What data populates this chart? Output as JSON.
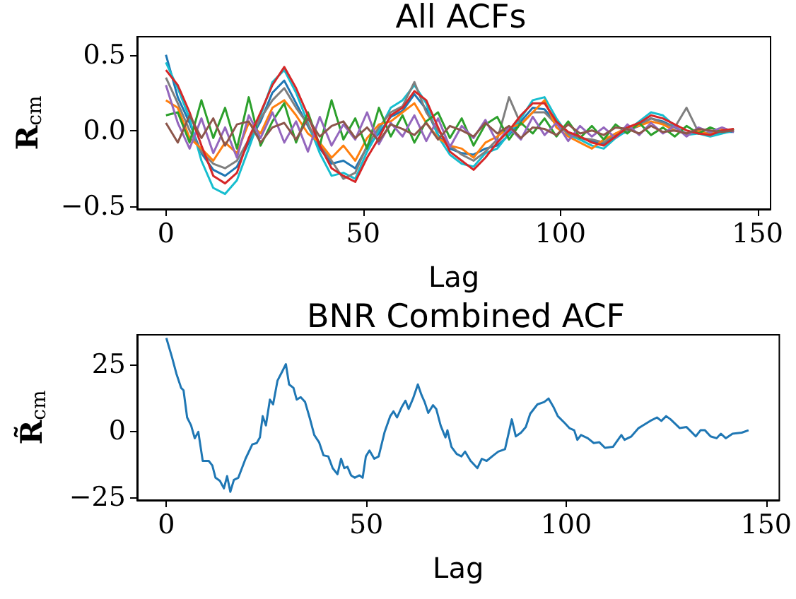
{
  "chart_data": [
    {
      "type": "line",
      "title": "All ACFs",
      "xlabel": "Lag",
      "ylabel": "R$_{cm}$",
      "x": [
        0,
        3,
        6,
        9,
        12,
        15,
        18,
        21,
        24,
        27,
        30,
        33,
        36,
        39,
        42,
        45,
        48,
        51,
        54,
        57,
        60,
        63,
        66,
        69,
        72,
        75,
        78,
        81,
        84,
        87,
        90,
        93,
        96,
        99,
        102,
        105,
        108,
        111,
        114,
        117,
        120,
        123,
        126,
        129,
        132,
        135,
        138,
        141,
        144
      ],
      "series": [
        {
          "color": "#1f77b4",
          "values": [
            0.5,
            0.22,
            0.05,
            -0.15,
            -0.26,
            -0.3,
            -0.24,
            -0.08,
            0.06,
            0.25,
            0.33,
            0.18,
            0.03,
            -0.12,
            -0.22,
            -0.2,
            -0.25,
            -0.11,
            -0.02,
            0.09,
            0.13,
            0.24,
            0.14,
            -0.03,
            -0.12,
            -0.15,
            -0.16,
            -0.12,
            -0.1,
            -0.03,
            0.06,
            0.15,
            0.14,
            0.05,
            -0.02,
            -0.05,
            -0.07,
            -0.09,
            -0.03,
            -0.01,
            0.04,
            0.08,
            0.06,
            0.02,
            -0.02,
            -0.01,
            -0.03,
            -0.01,
            -0.01
          ]
        },
        {
          "color": "#17becf",
          "values": [
            0.45,
            0.28,
            0.08,
            -0.2,
            -0.38,
            -0.42,
            -0.33,
            -0.12,
            0.1,
            0.32,
            0.4,
            0.25,
            0.05,
            -0.15,
            -0.3,
            -0.28,
            -0.32,
            -0.14,
            0.0,
            0.15,
            0.2,
            0.3,
            0.18,
            -0.04,
            -0.16,
            -0.22,
            -0.24,
            -0.15,
            -0.12,
            -0.02,
            0.08,
            0.2,
            0.22,
            0.08,
            -0.03,
            -0.06,
            -0.1,
            -0.12,
            -0.05,
            0.0,
            0.06,
            0.12,
            0.1,
            0.03,
            -0.03,
            -0.02,
            -0.04,
            -0.02,
            0.0
          ]
        },
        {
          "color": "#7f7f7f",
          "values": [
            0.35,
            0.18,
            0.0,
            -0.14,
            -0.22,
            -0.25,
            -0.2,
            -0.06,
            0.08,
            0.2,
            0.28,
            0.15,
            0.04,
            -0.1,
            -0.2,
            -0.32,
            -0.28,
            -0.1,
            0.02,
            0.12,
            0.16,
            0.32,
            0.12,
            0.0,
            -0.1,
            -0.16,
            -0.2,
            -0.14,
            -0.06,
            0.22,
            0.04,
            0.12,
            0.12,
            0.04,
            -0.02,
            -0.05,
            -0.06,
            -0.08,
            -0.02,
            0.0,
            0.03,
            0.08,
            0.05,
            0.02,
            0.15,
            -0.01,
            -0.02,
            0.0,
            0.0
          ]
        },
        {
          "color": "#ff7f0e",
          "values": [
            0.2,
            0.15,
            -0.05,
            -0.12,
            -0.2,
            -0.08,
            -0.15,
            0.05,
            -0.02,
            0.15,
            0.2,
            0.1,
            -0.02,
            -0.08,
            -0.18,
            -0.1,
            -0.2,
            -0.05,
            0.04,
            0.06,
            0.12,
            0.18,
            0.05,
            -0.05,
            -0.1,
            -0.12,
            -0.18,
            -0.08,
            -0.04,
            0.02,
            0.04,
            0.12,
            0.2,
            0.02,
            -0.04,
            -0.08,
            -0.12,
            -0.06,
            -0.02,
            0.02,
            0.03,
            0.06,
            0.04,
            0.0,
            -0.02,
            0.0,
            -0.03,
            0.01,
            0.0
          ]
        },
        {
          "color": "#2ca02c",
          "values": [
            0.1,
            0.12,
            -0.08,
            0.2,
            -0.05,
            0.15,
            -0.12,
            0.22,
            -0.1,
            0.06,
            0.18,
            -0.08,
            0.12,
            -0.1,
            0.2,
            -0.06,
            0.08,
            -0.12,
            0.15,
            -0.04,
            0.1,
            -0.08,
            0.06,
            0.12,
            -0.05,
            0.08,
            -0.1,
            0.04,
            0.09,
            -0.06,
            0.05,
            -0.02,
            0.08,
            -0.04,
            0.06,
            -0.05,
            0.03,
            -0.06,
            0.04,
            -0.02,
            0.05,
            -0.03,
            0.02,
            -0.04,
            0.03,
            -0.02,
            0.02,
            -0.01,
            0.01
          ]
        },
        {
          "color": "#9467bd",
          "values": [
            0.3,
            0.05,
            -0.12,
            0.08,
            -0.15,
            0.02,
            -0.18,
            0.1,
            -0.05,
            0.12,
            -0.08,
            0.06,
            -0.14,
            0.09,
            -0.1,
            0.04,
            -0.06,
            0.12,
            -0.09,
            0.05,
            -0.04,
            0.1,
            -0.07,
            0.08,
            -0.11,
            0.03,
            -0.05,
            0.07,
            -0.08,
            0.02,
            -0.06,
            0.09,
            -0.03,
            0.05,
            -0.07,
            0.03,
            -0.04,
            0.02,
            -0.05,
            0.04,
            -0.03,
            0.05,
            -0.02,
            0.03,
            -0.04,
            0.02,
            -0.01,
            0.02,
            -0.01
          ]
        },
        {
          "color": "#d62728",
          "values": [
            0.4,
            0.3,
            0.12,
            -0.1,
            -0.3,
            -0.35,
            -0.28,
            -0.05,
            0.12,
            0.3,
            0.42,
            0.28,
            0.1,
            -0.1,
            -0.25,
            -0.3,
            -0.34,
            -0.18,
            -0.05,
            0.1,
            0.15,
            0.26,
            0.2,
            0.02,
            -0.14,
            -0.2,
            -0.26,
            -0.18,
            -0.08,
            0.0,
            0.1,
            0.18,
            0.18,
            0.06,
            -0.01,
            -0.04,
            -0.08,
            -0.1,
            -0.04,
            0.02,
            0.05,
            0.1,
            0.08,
            0.04,
            0.0,
            -0.02,
            -0.03,
            0.0,
            0.01
          ]
        },
        {
          "color": "#8c564b",
          "values": [
            0.05,
            -0.08,
            0.1,
            -0.05,
            0.08,
            -0.1,
            0.04,
            0.06,
            -0.08,
            0.02,
            0.05,
            -0.06,
            0.08,
            -0.04,
            0.03,
            0.06,
            -0.05,
            0.02,
            -0.07,
            0.04,
            0.01,
            -0.03,
            0.05,
            -0.06,
            0.03,
            0.0,
            -0.04,
            0.05,
            -0.02,
            0.03,
            -0.05,
            0.02,
            0.01,
            -0.03,
            0.04,
            -0.02,
            0.0,
            -0.03,
            0.02,
            0.01,
            -0.02,
            0.03,
            -0.01,
            0.0,
            -0.02,
            0.01,
            0.0,
            -0.01,
            0.0
          ]
        }
      ],
      "xlim": [
        -7.3,
        153.3
      ],
      "xticks": [
        0,
        50,
        100,
        150
      ],
      "ylim": [
        -0.52,
        0.62
      ],
      "yticks": [
        {
          "value": -0.5,
          "label": "−0.5"
        },
        {
          "value": 0,
          "label": "0.0"
        },
        {
          "value": 0.5,
          "label": "0.5"
        }
      ]
    },
    {
      "type": "line",
      "title": "BNR Combined ACF",
      "xlabel": "Lag",
      "ylabel": "R̃$_{cm}$",
      "x": [
        0,
        1.4,
        2.5,
        3.7,
        4.3,
        5.2,
        6.2,
        7.1,
        8,
        9.1,
        10.6,
        11.5,
        12.3,
        13.4,
        14.4,
        15.2,
        16,
        16.9,
        18,
        19.8,
        21.5,
        22.6,
        23.4,
        24.1,
        24.9,
        25.9,
        26.7,
        27.8,
        29,
        29.9,
        30.7,
        31.8,
        32.6,
        33.6,
        34.7,
        35.9,
        37,
        38.2,
        39.3,
        40.5,
        41.6,
        42.8,
        43.7,
        44.5,
        45.3,
        46.2,
        47.1,
        48.3,
        49.1,
        49.9,
        50.8,
        52,
        53.1,
        54.6,
        56,
        56.8,
        57.7,
        58.9,
        59.8,
        60.6,
        61.7,
        62.9,
        63.8,
        64.6,
        65.5,
        66.7,
        67.5,
        68.6,
        69.8,
        70.3,
        71.3,
        72.6,
        73.8,
        74.7,
        76.1,
        77.8,
        78.9,
        80.1,
        81.8,
        83,
        84.7,
        86.4,
        87.4,
        88.7,
        89.9,
        91,
        92.8,
        94.5,
        95.6,
        96.8,
        97.9,
        99.7,
        100.8,
        102,
        102.8,
        103.7,
        105.4,
        106.9,
        108.3,
        109.7,
        111.7,
        113.8,
        114.6,
        116.3,
        118.1,
        119.2,
        121,
        122.7,
        123.8,
        125,
        126.1,
        128.4,
        130.1,
        131.3,
        132.4,
        133.6,
        134.7,
        136.1,
        137.6,
        138.7,
        139.9,
        141.6,
        143.9,
        145.6
      ],
      "series": [
        {
          "color": "#1f77b4",
          "values": [
            34.8,
            27.7,
            21.5,
            16.1,
            15.2,
            5,
            2,
            -2.8,
            -0.4,
            -11.3,
            -11.3,
            -13,
            -17.6,
            -18.8,
            -21.6,
            -17,
            -22.9,
            -18.4,
            -17.6,
            -10.5,
            -5.1,
            -4.6,
            -2.5,
            5.5,
            2,
            11.7,
            9.9,
            18.8,
            22.3,
            25,
            17.4,
            16.1,
            11.7,
            12.6,
            10.8,
            4.6,
            -1.6,
            -4.3,
            -9.2,
            -9.6,
            -14,
            -16.3,
            -10.5,
            -14,
            -13.5,
            -16.7,
            -17.6,
            -16.7,
            -17.6,
            -9.6,
            -7.4,
            -10.5,
            -9.6,
            -0.4,
            5.5,
            7.3,
            5,
            9,
            11.3,
            8.2,
            12.1,
            17.4,
            13.5,
            10.8,
            6.7,
            9.6,
            8.2,
            2,
            -2.5,
            0.2,
            -6,
            -8.7,
            -9.6,
            -7.8,
            -11.3,
            -14,
            -10.5,
            -11.3,
            -9.2,
            -7.8,
            -6.9,
            4.3,
            -2.1,
            -0.7,
            1.4,
            6.4,
            9.9,
            10.8,
            12.1,
            9,
            5.5,
            2.8,
            1,
            0.2,
            -3.4,
            -1.6,
            -2.8,
            -4.6,
            -4.3,
            -6.4,
            -6,
            -1.6,
            -3.4,
            -2.1,
            1,
            2,
            3.7,
            5,
            3.7,
            5.5,
            4.3,
            1,
            1.4,
            -0.4,
            -2.1,
            0.2,
            0.2,
            -2.1,
            -2.8,
            -1.1,
            -2.8,
            -1.1,
            -0.7,
            0.2
          ]
        }
      ],
      "xlim": [
        -7.3,
        153.3
      ],
      "xticks": [
        0,
        50,
        100,
        150
      ],
      "ylim": [
        -26,
        36
      ],
      "yticks": [
        {
          "value": -25,
          "label": "−25"
        },
        0,
        25
      ]
    }
  ]
}
